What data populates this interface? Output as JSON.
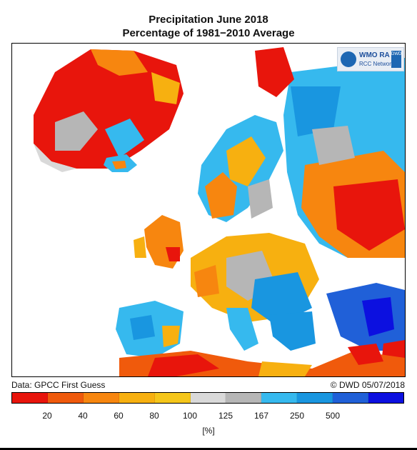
{
  "title_line1": "Precipitation June 2018",
  "title_line2": "Percentage of 1981−2010 Average",
  "logo": {
    "wmo": "WMO RA VI",
    "rcc": "RCC Network",
    "dwd": "DWD"
  },
  "credit_left": "Data: GPCC First Guess",
  "credit_right": "© DWD 05/07/2018",
  "legend": {
    "unit": "[%]",
    "colors": [
      "#e8150c",
      "#f05a0c",
      "#f7860f",
      "#f7b010",
      "#f5c61a",
      "#d9d9d9",
      "#b6b6b6",
      "#36b9ee",
      "#1996e0",
      "#2060d8",
      "#0c10e0"
    ],
    "ticks": [
      "20",
      "40",
      "60",
      "80",
      "100",
      "125",
      "167",
      "250",
      "500"
    ]
  },
  "colors": {
    "ocean": "#ffffff",
    "no_data_land": "#ffffff"
  }
}
